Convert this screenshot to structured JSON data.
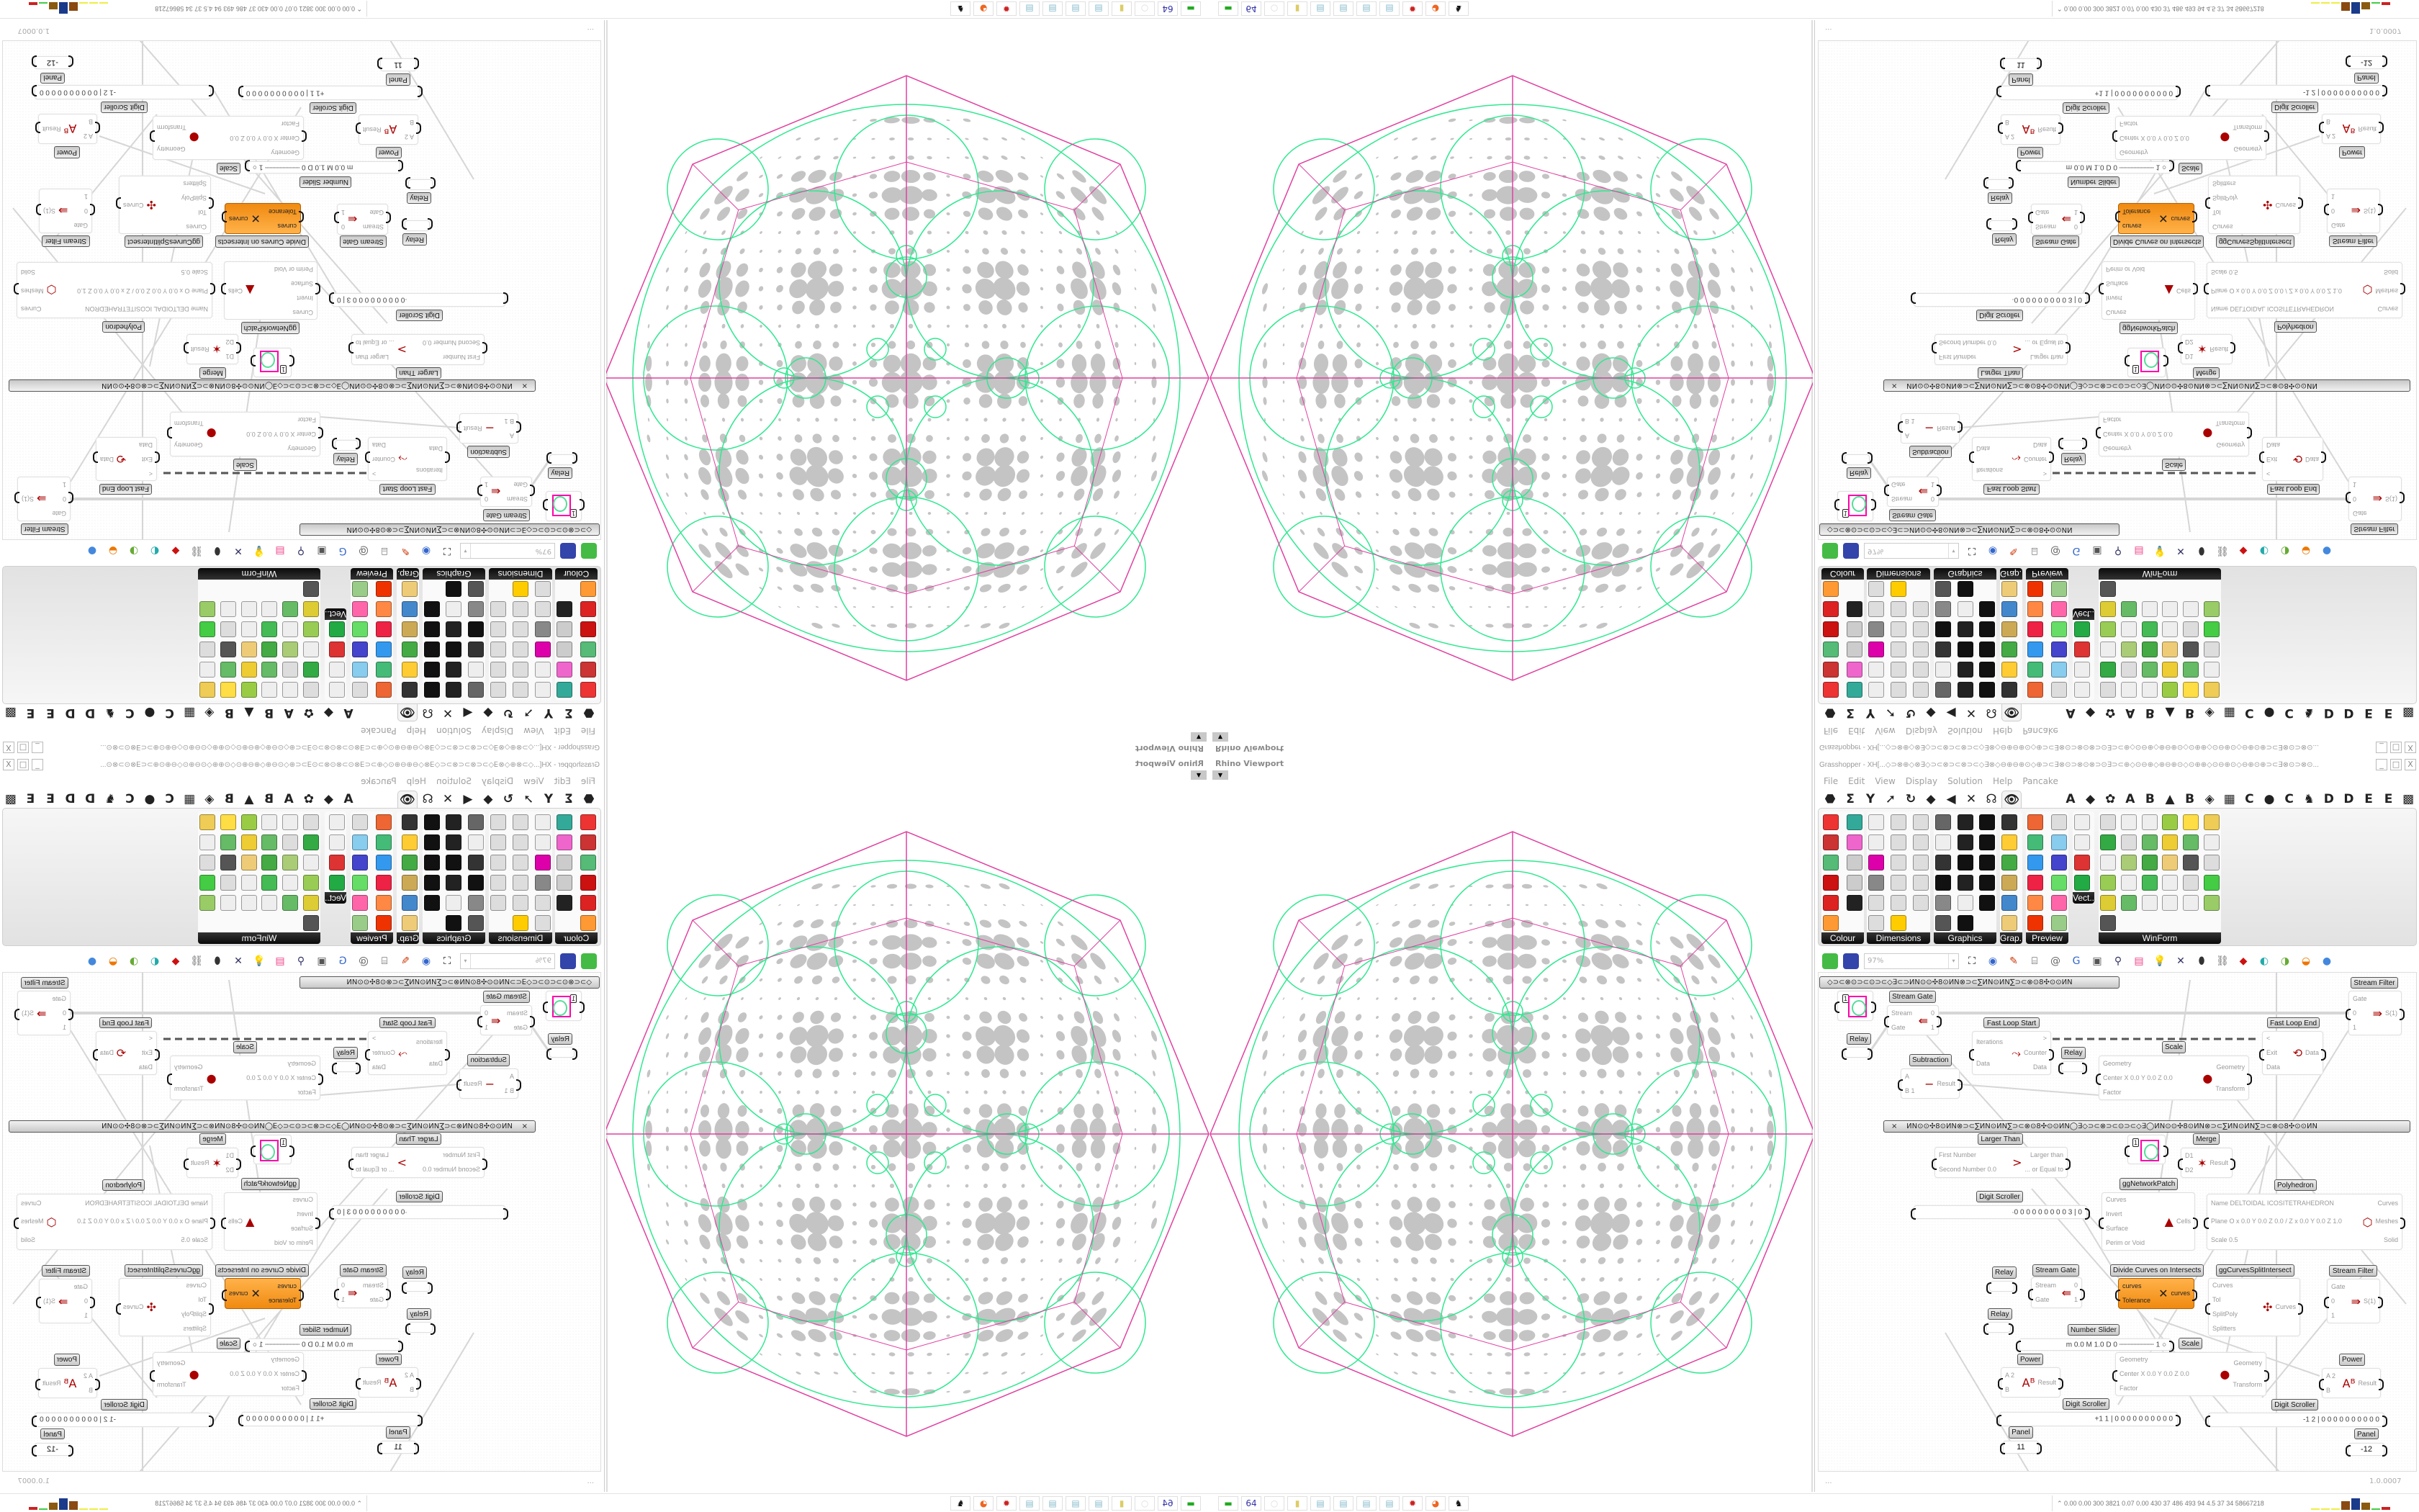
{
  "viewport": {
    "label": "Rhino Viewport",
    "dropdown_icon": "caret-down"
  },
  "colors": {
    "polyhedron_edges": "#e040a0",
    "patch_curves": "#30e890",
    "holes": "#c4c4c4",
    "component_selected": "#f59a23"
  },
  "gh": {
    "title": "Grasshopper - XH[...◇⊃⊗⊕◇⊗∃◇⊃⊂⊗⊃⊂⊗⊃⊂◇∃⊗◇⊖⊕⊖⊕⊙◇⊕⊃⊂∃⊗⊙⊃⊗⊙⊗⊃⊙∃⊃⊂⊕◇⊙⊖⊕◇⊕⊖⊕⊙◇⊙⊕⊕◇⊙⊖⊕⊙◇⊖⊕⊙⊕⊃⊂∃⊗⊙⊃⊗⊙...",
    "window_buttons": [
      "_",
      "□",
      "X"
    ],
    "menu": [
      "File",
      "Edit",
      "View",
      "Display",
      "Solution",
      "Help",
      "Pancake"
    ],
    "tabs_left": [
      "⬣",
      "Σ",
      "Y",
      "➚",
      "↻",
      "◆",
      "◀",
      "✕",
      "☊"
    ],
    "tab_active": "👁",
    "tabs_right": [
      "A",
      "◆",
      "✿",
      "A",
      "B",
      "▲",
      "B",
      "◈",
      "▦",
      "C",
      "●",
      "C",
      "♞",
      "D",
      "D",
      "E",
      "E",
      "▩"
    ],
    "ribbon": [
      {
        "label": "Colour",
        "icons": [
          [
            "colour-wheel",
            "#e33"
          ],
          [
            "gradient",
            "#3a9"
          ],
          [
            "rgb-cube",
            "#c33"
          ],
          [
            "colour-triangle",
            "#e6c"
          ],
          [
            "hsl-cube",
            "#5b7"
          ],
          [
            "hsl",
            "#ccc"
          ],
          [
            "red-sphere",
            "#c11"
          ],
          [
            "hsv",
            "#ccc"
          ],
          [
            "red-sphere-2",
            "#d22"
          ],
          [
            "spectrum",
            "#222"
          ],
          [
            "swatch",
            "#f93"
          ]
        ]
      },
      {
        "label": "Dimensions",
        "icons": [
          [
            "tag-delete",
            "#eee"
          ],
          [
            "dim-linear",
            "#ddd"
          ],
          [
            "dim-angular",
            "#ddd"
          ],
          [
            "tag",
            "#eee"
          ],
          [
            "line-dim",
            "#ddd"
          ],
          [
            "box-dim",
            "#ddd"
          ],
          [
            "magenta-swatch",
            "#d0a"
          ],
          [
            "dim-ordinate",
            "#ddd"
          ],
          [
            "dim-radial",
            "#ddd"
          ],
          [
            "grid-dim",
            "#888"
          ],
          [
            "dim-angle",
            "#ddd"
          ],
          [
            "dim-aligned",
            "#ddd"
          ],
          [
            "dim-curve",
            "#ddd"
          ],
          [
            "dim-chain",
            "#ddd"
          ],
          [
            "dim-leader",
            "#ddd"
          ],
          [
            "dim-diag",
            "#ddd"
          ],
          [
            "warning-triangle",
            "#fc0"
          ]
        ]
      },
      {
        "label": "Graphics",
        "icons": [
          [
            "circle-fill",
            "#666"
          ],
          [
            "text-t-circle",
            "#222"
          ],
          [
            "eye-circle",
            "#111"
          ],
          [
            "dot-circle",
            "#eee"
          ],
          [
            "text-t",
            "#222"
          ],
          [
            "square-circle",
            "#111"
          ],
          [
            "blur-circle",
            "#333"
          ],
          [
            "list-circle",
            "#111"
          ],
          [
            "asterisk-circle",
            "#111"
          ],
          [
            "ring",
            "#111"
          ],
          [
            "link-circle",
            "#222"
          ],
          [
            "save-image",
            "#111"
          ],
          [
            "gradient-circle",
            "#888"
          ],
          [
            "dashed-circle",
            "#eee"
          ],
          [
            "save-star",
            "#111"
          ],
          [
            "sphere-shade",
            "#555"
          ],
          [
            "image-circle",
            "#111"
          ]
        ]
      },
      {
        "label": "Grap...",
        "icons": [
          [
            "histogram",
            "#333"
          ],
          [
            "legend",
            "#fc3"
          ],
          [
            "pie-ring",
            "#4a4"
          ],
          [
            "line-graph",
            "#ca5"
          ],
          [
            "image-stack",
            "#48c"
          ],
          [
            "chart-area",
            "#ec7"
          ]
        ]
      },
      {
        "label": "Preview",
        "icons": [
          [
            "custom-preview",
            "#e63"
          ],
          [
            "camera",
            "#ddd"
          ],
          [
            "material",
            "#4b7"
          ],
          [
            "landscape",
            "#8ce"
          ],
          [
            "blobs",
            "#39e"
          ],
          [
            "heart-mesh",
            "#44c"
          ],
          [
            "red-dots",
            "#e24"
          ],
          [
            "heart-green",
            "#6d6"
          ],
          [
            "gradient-square",
            "#f84"
          ],
          [
            "hearts",
            "#f6a"
          ],
          [
            "script-sl",
            "#e30"
          ],
          [
            "tree-image",
            "#9c8"
          ]
        ]
      },
      {
        "label": "Vect...",
        "icons": [
          [
            "sort-numbers",
            "#eee"
          ],
          [
            "path-points",
            "#eee"
          ],
          [
            "red-arrows",
            "#d33"
          ],
          [
            "green-arrows",
            "#2a4"
          ]
        ]
      },
      {
        "label": "WinForm",
        "icons": [
          [
            "label-a",
            "#ddd"
          ],
          [
            "list-box",
            "#eee"
          ],
          [
            "text-box",
            "#eee"
          ],
          [
            "grid-green",
            "#9c4"
          ],
          [
            "pie-yellow",
            "#fd4"
          ],
          [
            "layout-yellow",
            "#ec5"
          ],
          [
            "hatch-green",
            "#3a4"
          ],
          [
            "track-bar",
            "#ddd"
          ],
          [
            "h-slider",
            "#6b6"
          ],
          [
            "pie-chart",
            "#ec3"
          ],
          [
            "user-pie",
            "#6b6"
          ],
          [
            "checkbox",
            "#eee"
          ],
          [
            "text-lines",
            "#eee"
          ],
          [
            "picture",
            "#ac7"
          ],
          [
            "spinner",
            "#4a4"
          ],
          [
            "add-label",
            "#ec7"
          ],
          [
            "menu-strip",
            "#555"
          ],
          [
            "numeric-box",
            "#ddd"
          ],
          [
            "package",
            "#9c5"
          ],
          [
            "checked-list",
            "#eee"
          ],
          [
            "panel-green",
            "#4b5"
          ],
          [
            "ok-button",
            "#eee"
          ],
          [
            "toggle",
            "#ddd"
          ],
          [
            "progress",
            "#4c4"
          ],
          [
            "bar-chart",
            "#dc3"
          ],
          [
            "arrow-bar",
            "#6b6"
          ],
          [
            "calendar",
            "#eee"
          ],
          [
            "v-slider",
            "#eee"
          ],
          [
            "label-box",
            "#eee"
          ],
          [
            "area-chart",
            "#9c6"
          ],
          [
            "tree-view",
            "#555"
          ]
        ]
      }
    ],
    "toolbar": {
      "zoom_value": "97%",
      "dropdown": "▾",
      "icons": [
        [
          "zoom-extents-icon",
          "⛶",
          "#111"
        ],
        [
          "preview-eye-icon",
          "◉",
          "#36c"
        ],
        [
          "sketch-icon",
          "✎",
          "#c30"
        ],
        [
          "bake-icon",
          "⌸",
          "#333"
        ],
        [
          "email-icon",
          "@",
          "#666"
        ],
        [
          "gha-icon",
          "G",
          "#36c"
        ],
        [
          "document-icon",
          "▣",
          "#555"
        ],
        [
          "search-icon",
          "⚲",
          "#336"
        ],
        [
          "package-icon",
          "▤",
          "#e48"
        ],
        [
          "bulb-icon",
          "💡",
          "#a9e"
        ],
        [
          "network-icon",
          "✕",
          "#336"
        ],
        [
          "capsule-icon",
          "⬮",
          "#333"
        ],
        [
          "link-icon",
          "⛓",
          "#666"
        ],
        [
          "red-gem-icon",
          "◆",
          "#c11"
        ],
        [
          "cyan-shape-icon",
          "◐",
          "#2aa"
        ],
        [
          "green-shape-icon",
          "◑",
          "#6a3"
        ],
        [
          "orange-sphere-icon",
          "◒",
          "#e70"
        ],
        [
          "blue-sphere-icon",
          "●",
          "#48d"
        ]
      ]
    },
    "groups": [
      "◇⊃⊂⊗⊙⊃⊂⊙⊃⊂◇∃⊂⊃ИN⊙⊙✣8⊙ИN⊗⊃⊂∑ИN⊙ИN∑⊃⊂⊗⊙8✣⊙⊙ИN",
      "ИN⊙⊙✣8⊙ИN⊗⊃⊂∑ИN⊙ИN∑⊃⊂⊗⊙8✣⊙⊙ИN◯∃◇⊃⊂⊗⊃⊂⊙⊃⊂◇∃◯ИN⊙⊙✣8⊙ИN⊗⊃⊂∑ИN⊙ИN∑⊃⊂⊗⊙8✣⊙⊙ИN"
    ],
    "group_close": "×",
    "components": [
      {
        "kind": "param",
        "value": "1"
      },
      {
        "title": "Stream Gate",
        "ins": [
          "Stream",
          "Gate"
        ],
        "outs": [
          "0",
          "1"
        ],
        "icon": "⇚"
      },
      {
        "title": "Relay",
        "kind": "relay"
      },
      {
        "title": "Fast Loop Start",
        "ins": [
          "Iterations",
          "Data"
        ],
        "outs": [
          ">",
          "Counter",
          "Data"
        ],
        "icon": "⤳"
      },
      {
        "title": "Relay",
        "kind": "relay"
      },
      {
        "title": "Subtraction",
        "ins": [
          "A",
          "B 1"
        ],
        "outs": [
          "Result"
        ],
        "icon": "−"
      },
      {
        "title": "Scale",
        "ins": [
          "Geometry",
          "Center X 0.0 Y 0.0 Z 0.0",
          "Factor"
        ],
        "outs": [
          "Geometry",
          "Transform"
        ],
        "icon": "●"
      },
      {
        "title": "Fast Loop End",
        "ins": [
          "<",
          "Exit",
          "Data"
        ],
        "outs": [
          "Data"
        ],
        "icon": "⟲"
      },
      {
        "title": "Stream Filter",
        "ins": [
          "Gate",
          "0",
          "1"
        ],
        "outs": [
          "S(1)"
        ],
        "icon": "⇛"
      },
      {
        "title": "Larger Than",
        "ins": [
          "First Number",
          "Second Number 0.0"
        ],
        "outs": [
          "Larger than",
          "... or Equal to"
        ],
        "icon": ">"
      },
      {
        "kind": "param",
        "value": "1"
      },
      {
        "title": "Merge",
        "ins": [
          "D1",
          "D2"
        ],
        "outs": [
          "Result"
        ],
        "icon": "✶"
      },
      {
        "title": "ggNetworkPatch",
        "ins": [
          "Curves",
          "Invert",
          "Surface",
          "Perim or Void"
        ],
        "outs": [
          "Cells"
        ],
        "icon": "▲"
      },
      {
        "title": "Polyhedron",
        "ins": [
          "Name DELTOIDAL ICOSITETRAHEDRON",
          "Plane  O x 0.0 Y 0.0 Z 0.0 / Z x 0.0 Y 0.0 Z 1.0",
          "Scale 0.5"
        ],
        "outs": [
          "Curves",
          "Meshes",
          "Solid"
        ],
        "icon": "⬡"
      },
      {
        "title": "Digit Scroller",
        "kind": "scroller",
        "value": "·0 0 0 0 0 0 0 0 0 3 | 0"
      },
      {
        "title": "Relay",
        "kind": "relay"
      },
      {
        "title": "Stream Gate",
        "ins": [
          "Stream",
          "Gate"
        ],
        "outs": [
          "0",
          "1"
        ],
        "icon": "⇚"
      },
      {
        "title": "Divide Curves on Intersects",
        "kind": "orange",
        "ins": [
          "curves",
          "Tolerance"
        ],
        "outs": [
          "curves"
        ],
        "icon": "✕"
      },
      {
        "title": "ggCurvesSplitIntersect",
        "ins": [
          "Curves",
          "Tol",
          "SplitPoly",
          "Splitters"
        ],
        "outs": [
          "Curves"
        ],
        "icon": "✣"
      },
      {
        "title": "Stream Filter",
        "ins": [
          "Gate",
          "0",
          "1"
        ],
        "outs": [
          "S(1)"
        ],
        "icon": "⇛"
      },
      {
        "title": "Relay",
        "kind": "relay"
      },
      {
        "title": "Number Slider",
        "kind": "scroller",
        "value": "m 0.0  M 1.0  D 0  ┄┄┄┄┄┄┄┄ 1 ○"
      },
      {
        "title": "Scale",
        "ins": [
          "Geometry",
          "Center X 0.0 Y 0.0 Z 0.0",
          "Factor"
        ],
        "outs": [
          "Geometry",
          "Transform"
        ],
        "icon": "●"
      },
      {
        "title": "Power",
        "ins": [
          "A 2",
          "B"
        ],
        "outs": [
          "Result"
        ],
        "icon": "Aᴮ"
      },
      {
        "title": "Digit Scroller",
        "kind": "scroller",
        "value": "+1 1 | 0 0 0 0 0 0 0 0 0 0"
      },
      {
        "title": "Panel",
        "kind": "panel",
        "value": "11"
      },
      {
        "title": "Power",
        "ins": [
          "A 2",
          "B"
        ],
        "outs": [
          "Result"
        ],
        "icon": "Aᴮ"
      },
      {
        "title": "Digit Scroller",
        "kind": "scroller",
        "value": "-1 2 | 0 0 0 0 0 0 0 0 0 0"
      },
      {
        "title": "Panel",
        "kind": "panel",
        "value": "-12"
      }
    ],
    "status_left": "...",
    "status_right": "1.0.0007"
  },
  "taskbar": {
    "icons": [
      [
        "terminal-icon",
        "▬",
        "#2a2"
      ],
      [
        "save-64-icon",
        "64",
        "#33a"
      ],
      [
        "blank-icon",
        "○",
        "#ddd"
      ],
      [
        "folder-icon",
        "▮",
        "#dc6"
      ],
      [
        "notepad-icon",
        "▤",
        "#8bc"
      ],
      [
        "notepad-icon",
        "▤",
        "#8bc"
      ],
      [
        "notepad-icon",
        "▤",
        "#8bc"
      ],
      [
        "notepad-icon",
        "▤",
        "#8bc"
      ],
      [
        "gear-app-icon",
        "✹",
        "#c22"
      ],
      [
        "firefox-icon",
        "◕",
        "#e62"
      ],
      [
        "rhino-icon",
        "♞",
        "#111"
      ]
    ],
    "stats": "⌃  0.00 0.00 300 3821 0.07 0.00 430  37  486  493  94  4.5  37  34  58667218",
    "bars": [
      [
        "#ee4",
        2
      ],
      [
        "#ee4",
        2
      ],
      [
        "#ee4",
        2
      ],
      [
        "#8a4a10",
        12
      ],
      [
        "#1a3a8a",
        16
      ],
      [
        "#8a5a10",
        10
      ],
      [
        "#4c4",
        2
      ],
      [
        "#c22",
        4
      ]
    ]
  }
}
